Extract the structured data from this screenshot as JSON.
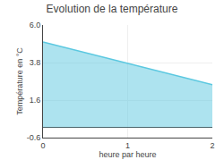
{
  "chart_data": {
    "type": "area",
    "title": "Evolution de la température",
    "xlabel": "heure par heure",
    "ylabel": "Température en °C",
    "x": [
      0,
      2
    ],
    "values": [
      5.0,
      2.5
    ],
    "color": "#5bc8e0",
    "xlim": [
      0,
      2
    ],
    "ylim": [
      -0.6,
      6.0
    ],
    "xticks": [
      0,
      1,
      2
    ],
    "yticks": [
      -0.6,
      1.6,
      3.8,
      {
        "value": 6.0,
        "label": "6.0"
      }
    ],
    "grid": true
  }
}
